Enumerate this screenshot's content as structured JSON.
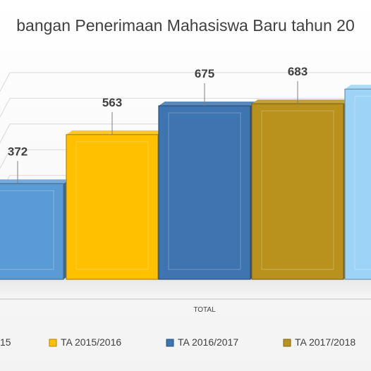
{
  "chart_data": {
    "type": "bar",
    "title": "bangan Penerimaan Mahasiswa Baru tahun 20",
    "category_axis_label": "TOTAL",
    "xlabel": "",
    "ylabel": "",
    "grid": true,
    "legend_position": "bottom",
    "series": [
      {
        "name": "15",
        "values": [
          372
        ],
        "color": "#5B9BD5",
        "label": "372"
      },
      {
        "name": "TA 2015/2016",
        "values": [
          563
        ],
        "color": "#FFC000",
        "label": "563"
      },
      {
        "name": "TA 2016/2017",
        "values": [
          675
        ],
        "color": "#3E74B0",
        "label": "675"
      },
      {
        "name": "TA 2017/2018",
        "values": [
          683
        ],
        "color": "#B8921C",
        "label": "683"
      },
      {
        "name": "",
        "values": [
          740
        ],
        "color": "#9DD3F7",
        "label": ""
      }
    ],
    "ylim": [
      0,
      800
    ]
  }
}
